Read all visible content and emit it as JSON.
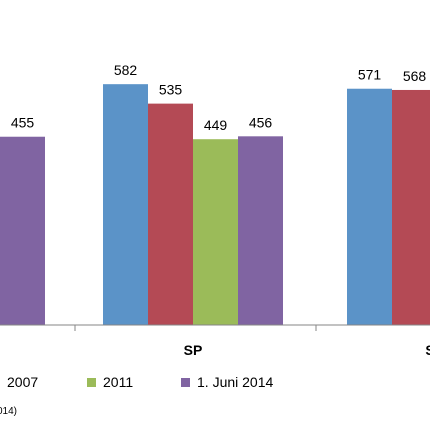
{
  "chart_data": {
    "type": "bar",
    "categories": [
      "",
      "SP",
      "S"
    ],
    "series": [
      {
        "name": "2007",
        "color": "#5B93C8",
        "values": [
          null,
          582,
          571
        ]
      },
      {
        "name": "",
        "color": "#B44A55",
        "values": [
          null,
          535,
          568
        ]
      },
      {
        "name": "2011",
        "color": "#9BBB59",
        "values": [
          null,
          449,
          null
        ]
      },
      {
        "name": "1. Juni 2014",
        "color": "#8064A2",
        "values": [
          455,
          456,
          null
        ]
      }
    ],
    "ylim": [
      0,
      650
    ],
    "grid": false,
    "legend_position": "bottom",
    "title": "",
    "xlabel": "",
    "ylabel": ""
  },
  "legend": [
    {
      "label": "2007",
      "color": "#5B93C8"
    },
    {
      "label": "2011",
      "color": "#9BBB59"
    },
    {
      "label": "1. Juni 2014",
      "color": "#8064A2"
    }
  ],
  "source_note": "014)"
}
